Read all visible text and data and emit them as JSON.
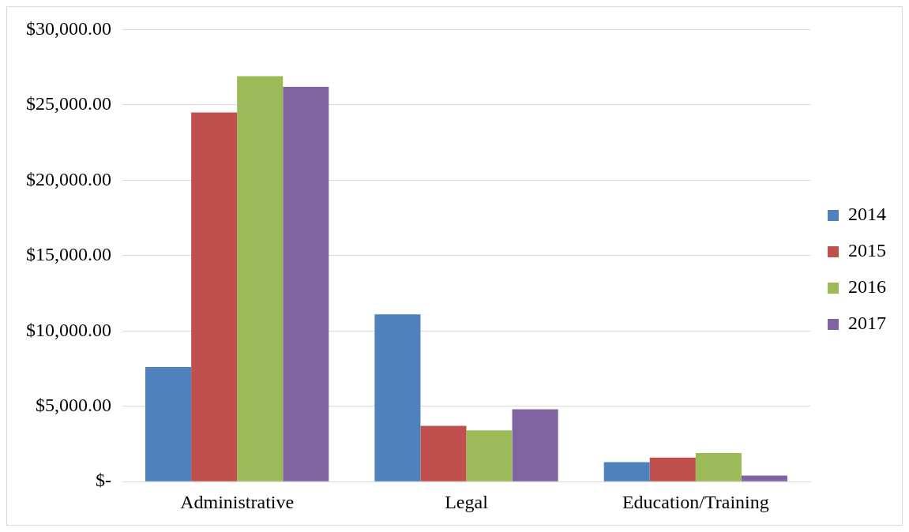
{
  "chart_data": {
    "type": "bar",
    "categories": [
      "Administrative",
      "Legal",
      "Education/Training"
    ],
    "series": [
      {
        "name": "2014",
        "color": "#4f81bd",
        "values": [
          7600,
          11100,
          1300
        ]
      },
      {
        "name": "2015",
        "color": "#c0504d",
        "values": [
          24500,
          3700,
          1600
        ]
      },
      {
        "name": "2016",
        "color": "#9bbb59",
        "values": [
          26900,
          3400,
          1900
        ]
      },
      {
        "name": "2017",
        "color": "#8064a2",
        "values": [
          26200,
          4800,
          400
        ]
      }
    ],
    "ylim": [
      0,
      30000
    ],
    "yticks": [
      {
        "value": 0,
        "label": "$-"
      },
      {
        "value": 5000,
        "label": "$5,000.00"
      },
      {
        "value": 10000,
        "label": "$10,000.00"
      },
      {
        "value": 15000,
        "label": "$15,000.00"
      },
      {
        "value": 20000,
        "label": "$20,000.00"
      },
      {
        "value": 25000,
        "label": "$25,000.00"
      },
      {
        "value": 30000,
        "label": "$30,000.00"
      }
    ],
    "grid": "y",
    "legend": "right"
  }
}
